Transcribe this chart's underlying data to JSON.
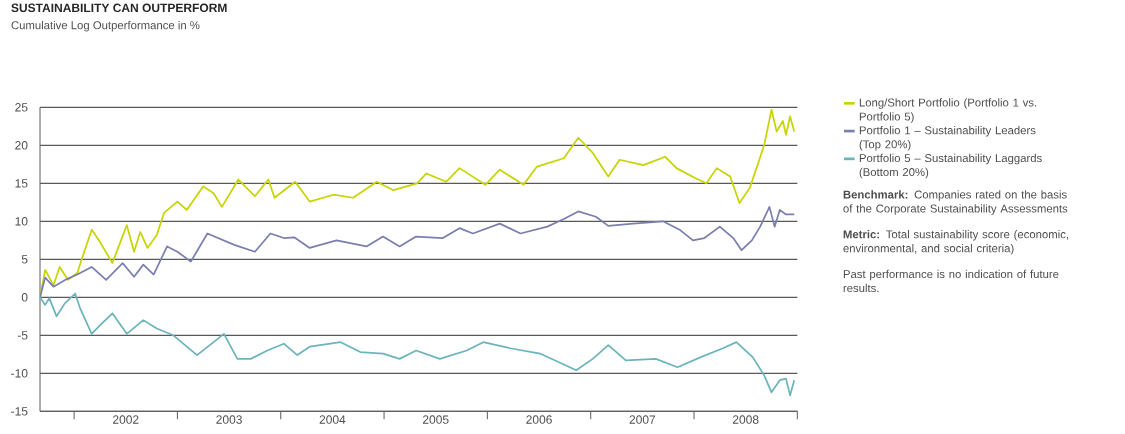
{
  "chart_data": {
    "type": "line",
    "title": "SUSTAINABILITY CAN OUTPERFORM",
    "subtitle": "Cumulative Log Outperformance in %",
    "annotations": [
      "**Benchmark:** Companies rated on the basis of the Corporate Sustainability Assessments",
      "**Metric:** Total sustainability score (economic, environmental, and social criteria)",
      "Past performance is no indication of future results."
    ],
    "xlim": [
      2001.67,
      2009
    ],
    "ylim": [
      -15,
      25
    ],
    "xticks": [
      {
        "value": 2002,
        "label": null
      },
      {
        "value": 2002.5,
        "label": "2002"
      },
      {
        "value": 2003,
        "label": null
      },
      {
        "value": 2003.5,
        "label": "2003"
      },
      {
        "value": 2004,
        "label": null
      },
      {
        "value": 2004.5,
        "label": "2004"
      },
      {
        "value": 2005,
        "label": null
      },
      {
        "value": 2005.5,
        "label": "2005"
      },
      {
        "value": 2006,
        "label": null
      },
      {
        "value": 2006.5,
        "label": "2006"
      },
      {
        "value": 2007,
        "label": null
      },
      {
        "value": 2007.5,
        "label": "2007"
      },
      {
        "value": 2008,
        "label": null
      },
      {
        "value": 2008.5,
        "label": "2008"
      },
      {
        "value": 2009,
        "label": null
      }
    ],
    "yticks": [
      -15,
      -10,
      -5,
      0,
      5,
      10,
      15,
      20,
      25
    ],
    "grid": "y",
    "legend": "right",
    "marker": "none",
    "line_style": "solid",
    "series": [
      {
        "name": "Long/Short Portfolio (Portfolio 1 vs. Portfolio 5)",
        "color": "#c8d400",
        "x": [
          2001.67,
          2001.72,
          2001.8,
          2001.86,
          2001.94,
          2002.03,
          2002.17,
          2002.25,
          2002.37,
          2002.51,
          2002.58,
          2002.64,
          2002.71,
          2002.8,
          2002.87,
          2003.0,
          2003.09,
          2003.25,
          2003.35,
          2003.43,
          2003.59,
          2003.75,
          2003.88,
          2003.94,
          2004.14,
          2004.28,
          2004.51,
          2004.7,
          2004.93,
          2005.09,
          2005.32,
          2005.41,
          2005.6,
          2005.73,
          2005.98,
          2006.12,
          2006.35,
          2006.48,
          2006.74,
          2006.88,
          2007.02,
          2007.17,
          2007.28,
          2007.51,
          2007.72,
          2007.83,
          2008.01,
          2008.12,
          2008.22,
          2008.35,
          2008.44,
          2008.54,
          2008.62,
          2008.68,
          2008.75,
          2008.8,
          2008.86,
          2008.89,
          2008.93,
          2008.97
        ],
        "values": [
          0,
          3.6,
          1.6,
          4.0,
          2.3,
          3.2,
          8.9,
          7.3,
          4.5,
          9.5,
          6.0,
          8.6,
          6.5,
          8.2,
          11.1,
          12.6,
          11.5,
          14.6,
          13.7,
          11.9,
          15.5,
          13.3,
          15.5,
          13.1,
          15.2,
          12.6,
          13.5,
          13.1,
          15.2,
          14.1,
          15.0,
          16.3,
          15.2,
          17.0,
          14.8,
          16.8,
          14.8,
          17.2,
          18.3,
          21.0,
          19.0,
          15.9,
          18.1,
          17.4,
          18.5,
          17.0,
          15.7,
          15.0,
          17.0,
          15.9,
          12.4,
          14.4,
          17.6,
          20.1,
          24.7,
          21.8,
          23.2,
          21.4,
          23.8,
          21.8
        ]
      },
      {
        "name": "Portfolio 1 – Sustainability Leaders (Top 20%)",
        "color": "#7a7fad",
        "x": [
          2001.67,
          2001.72,
          2001.8,
          2001.93,
          2002.03,
          2002.17,
          2002.31,
          2002.47,
          2002.58,
          2002.67,
          2002.77,
          2002.9,
          2003.0,
          2003.13,
          2003.29,
          2003.55,
          2003.75,
          2003.9,
          2004.03,
          2004.13,
          2004.28,
          2004.54,
          2004.83,
          2004.99,
          2005.15,
          2005.31,
          2005.57,
          2005.73,
          2005.86,
          2006.12,
          2006.32,
          2006.58,
          2006.74,
          2006.88,
          2007.05,
          2007.17,
          2007.41,
          2007.7,
          2007.86,
          2007.99,
          2008.1,
          2008.25,
          2008.38,
          2008.46,
          2008.56,
          2008.64,
          2008.73,
          2008.78,
          2008.83,
          2008.89,
          2008.97
        ],
        "values": [
          0,
          2.6,
          1.4,
          2.4,
          3.0,
          4.0,
          2.3,
          4.5,
          2.7,
          4.3,
          3.0,
          6.7,
          6.0,
          4.7,
          8.4,
          6.9,
          6.0,
          8.4,
          7.8,
          7.9,
          6.5,
          7.5,
          6.7,
          8.0,
          6.7,
          8.0,
          7.8,
          9.1,
          8.4,
          9.7,
          8.4,
          9.3,
          10.3,
          11.3,
          10.6,
          9.4,
          9.7,
          10.0,
          8.9,
          7.5,
          7.8,
          9.3,
          7.8,
          6.2,
          7.5,
          9.3,
          11.9,
          9.3,
          11.5,
          10.9,
          10.9
        ]
      },
      {
        "name": "Portfolio 5 – Sustainability Laggards (Bottom 20%)",
        "color": "#6cb4bc",
        "x": [
          2001.67,
          2001.72,
          2001.76,
          2001.83,
          2001.91,
          2002.01,
          2002.06,
          2002.17,
          2002.25,
          2002.37,
          2002.51,
          2002.67,
          2002.8,
          2002.96,
          2003.19,
          2003.35,
          2003.45,
          2003.58,
          2003.71,
          2003.87,
          2004.03,
          2004.16,
          2004.28,
          2004.58,
          2004.77,
          2004.99,
          2005.15,
          2005.31,
          2005.54,
          2005.8,
          2005.96,
          2006.22,
          2006.51,
          2006.86,
          2007.02,
          2007.17,
          2007.34,
          2007.63,
          2007.84,
          2008.06,
          2008.28,
          2008.41,
          2008.57,
          2008.68,
          2008.75,
          2008.83,
          2008.89,
          2008.93,
          2008.97
        ],
        "values": [
          0,
          -1.0,
          -0.1,
          -2.5,
          -0.8,
          0.5,
          -1.5,
          -4.8,
          -3.7,
          -2.1,
          -4.8,
          -3.0,
          -4.1,
          -5.0,
          -7.6,
          -5.9,
          -4.8,
          -8.1,
          -8.1,
          -7.0,
          -6.1,
          -7.6,
          -6.5,
          -5.9,
          -7.2,
          -7.4,
          -8.1,
          -7.0,
          -8.1,
          -7.0,
          -5.9,
          -6.7,
          -7.4,
          -9.6,
          -8.1,
          -6.3,
          -8.3,
          -8.1,
          -9.2,
          -7.9,
          -6.7,
          -5.9,
          -7.9,
          -10.3,
          -12.5,
          -10.9,
          -10.7,
          -12.9,
          -10.9
        ]
      }
    ]
  }
}
